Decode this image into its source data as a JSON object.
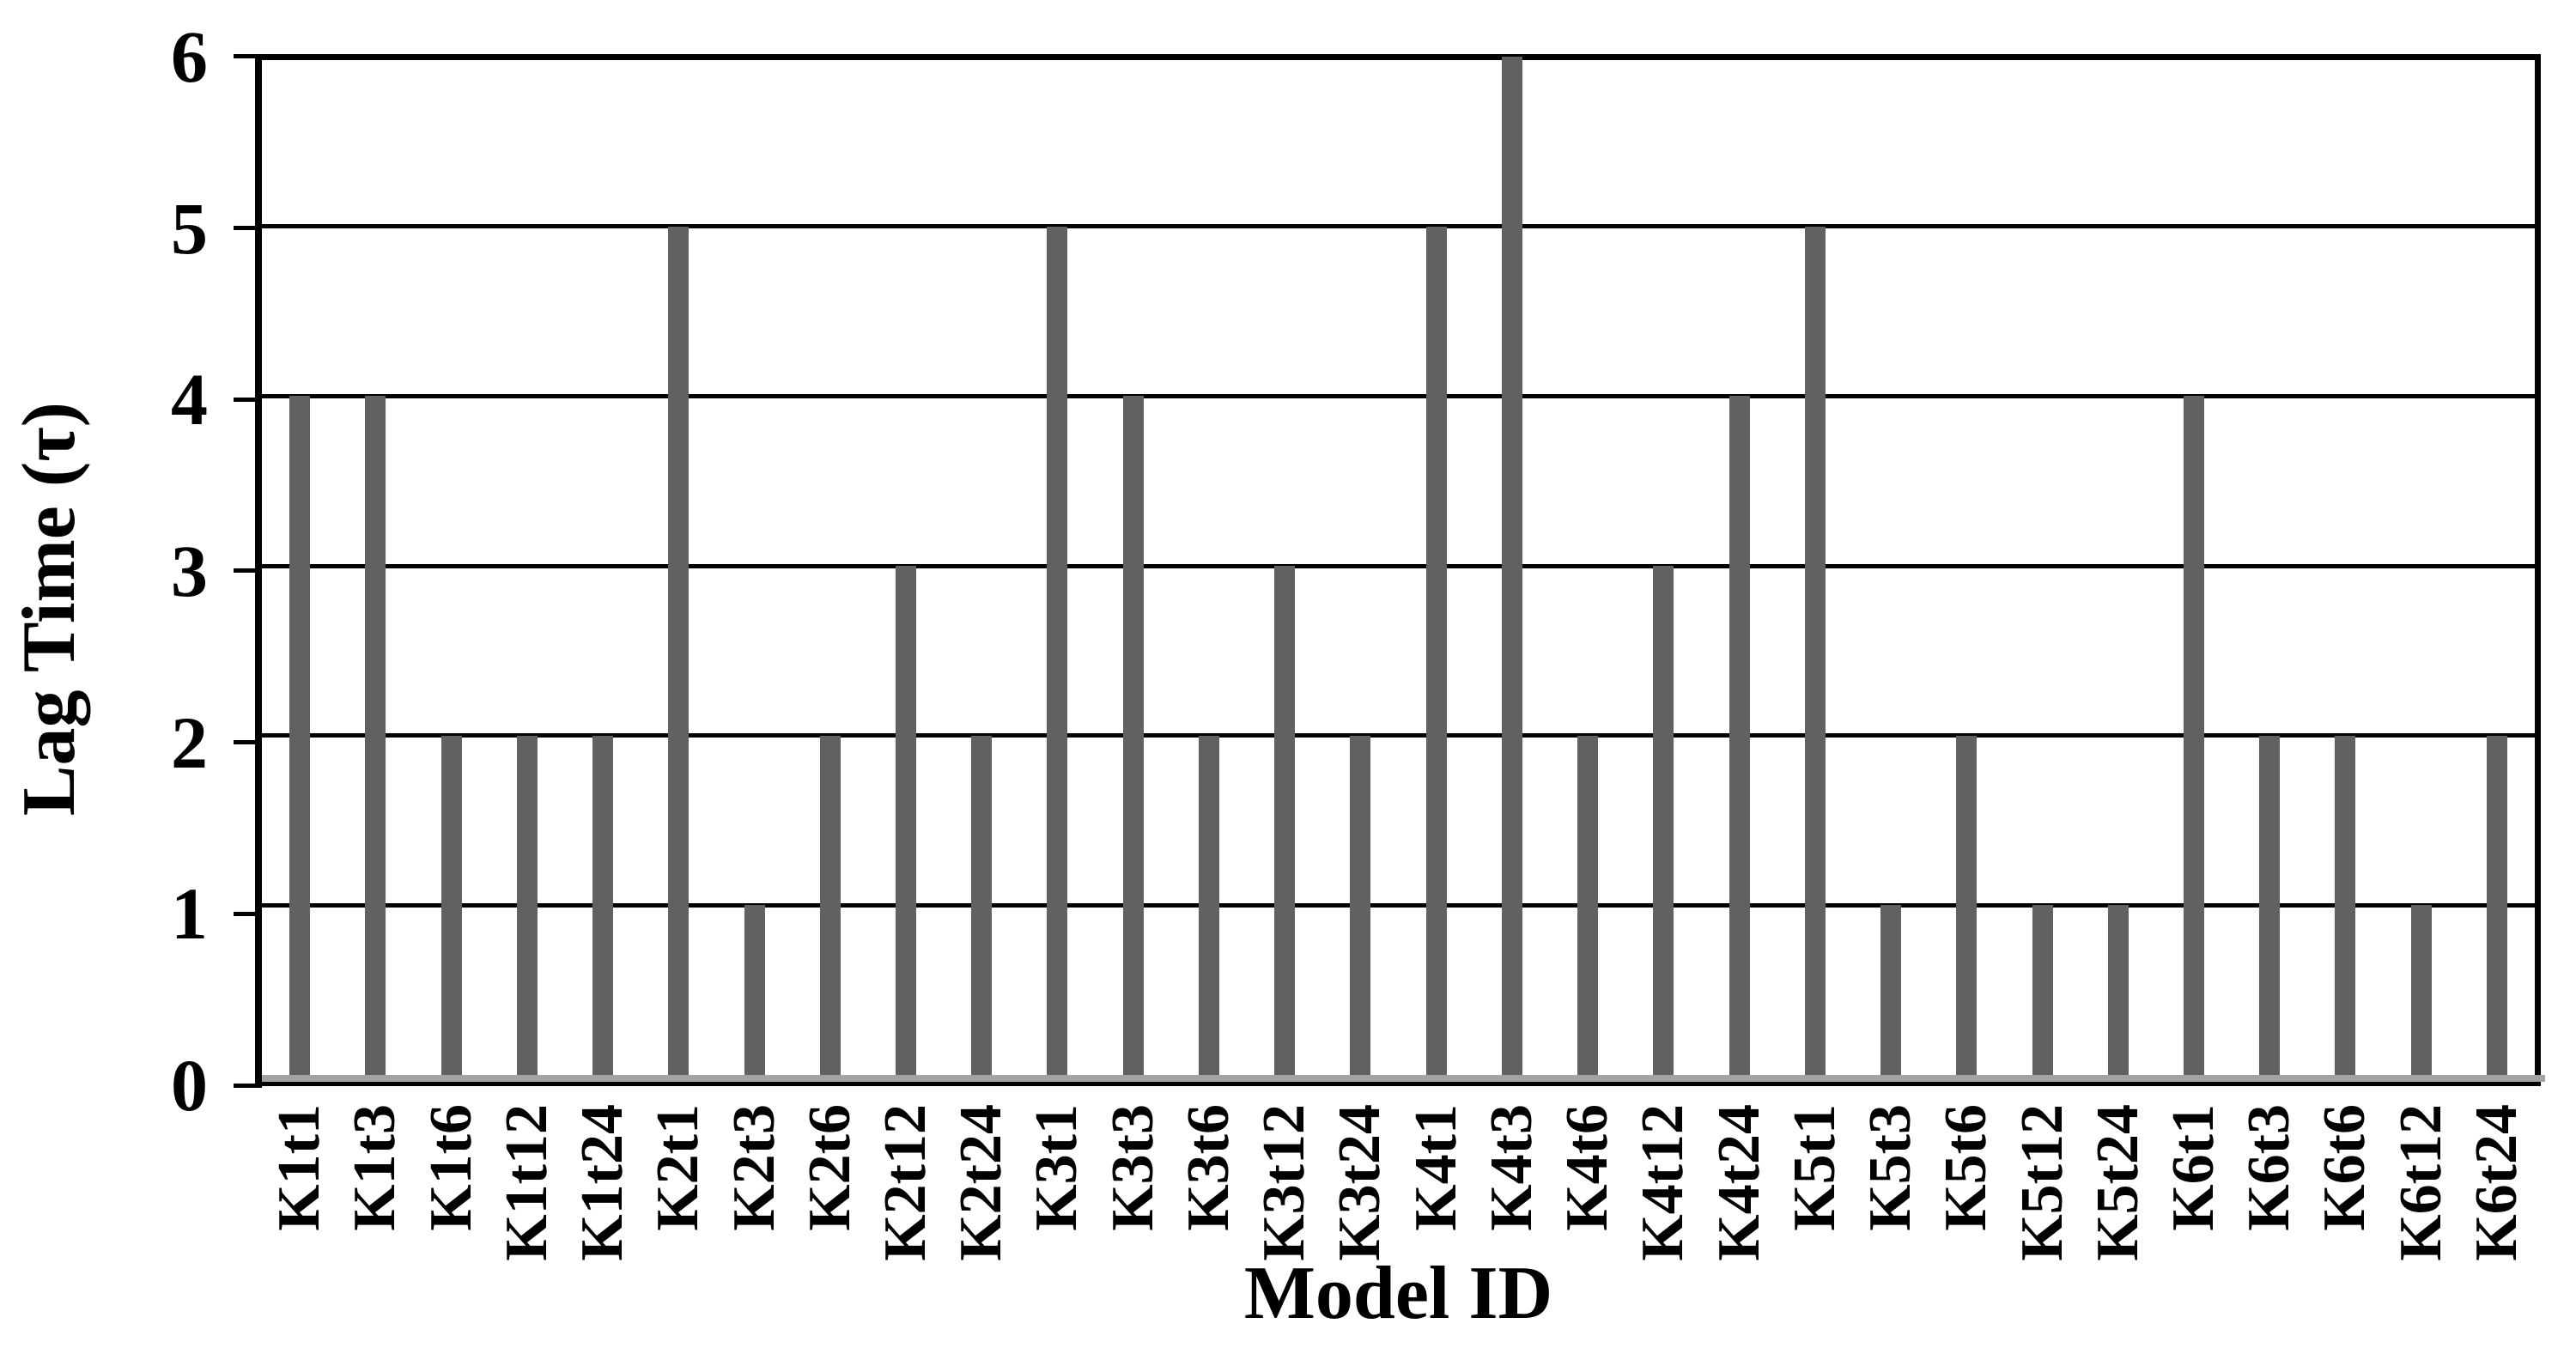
{
  "chart_data": {
    "type": "bar",
    "title": "",
    "xlabel": "Model ID",
    "ylabel": "Lag Time (τ)",
    "categories": [
      "K1t1",
      "K1t3",
      "K1t6",
      "K1t12",
      "K1t24",
      "K2t1",
      "K2t3",
      "K2t6",
      "K2t12",
      "K2t24",
      "K3t1",
      "K3t3",
      "K3t6",
      "K3t12",
      "K3t24",
      "K4t1",
      "K4t3",
      "K4t6",
      "K4t12",
      "K4t24",
      "K5t1",
      "K5t3",
      "K5t6",
      "K5t12",
      "K5t24",
      "K6t1",
      "K6t3",
      "K6t6",
      "K6t12",
      "K6t24"
    ],
    "values": [
      4,
      4,
      2,
      2,
      2,
      5,
      1,
      2,
      3,
      2,
      5,
      4,
      2,
      3,
      2,
      5,
      6,
      2,
      3,
      4,
      5,
      1,
      2,
      1,
      1,
      4,
      2,
      2,
      1,
      2
    ],
    "ylim": [
      0,
      6
    ],
    "yticks": [
      "0",
      "1",
      "2",
      "3",
      "4",
      "5",
      "6"
    ],
    "grid": "horizontal",
    "legend": "none",
    "bar_color": "#616161",
    "baseline_strip_color": "#a3a3a3",
    "axis_color": "#000000",
    "background_color": "#ffffff"
  }
}
